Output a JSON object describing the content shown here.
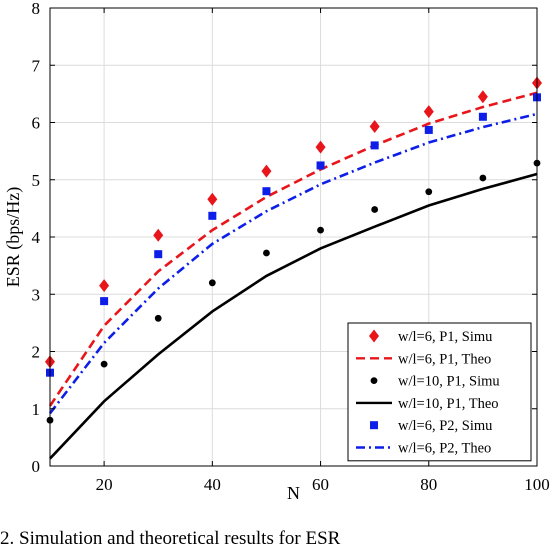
{
  "caption_text": "2. Simulation and theoretical results for ESR",
  "chart_data": {
    "type": "line",
    "xlabel": "N",
    "ylabel": "ESR (bps/Hz)",
    "xlim": [
      10,
      100
    ],
    "ylim": [
      0,
      8
    ],
    "xticks": [
      20,
      40,
      60,
      80,
      100
    ],
    "yticks": [
      0,
      1,
      2,
      3,
      4,
      5,
      6,
      7,
      8
    ],
    "grid": true,
    "legend_position": "bottom-right",
    "simu_x": [
      10,
      20,
      30,
      40,
      50,
      60,
      70,
      80,
      90,
      100
    ],
    "theo_x": [
      10,
      20,
      30,
      40,
      50,
      60,
      70,
      80,
      90,
      100
    ],
    "series": [
      {
        "name": "w/l=6, P1, Simu",
        "kind": "markers",
        "marker": "diamond",
        "color": "#e8151b",
        "values": [
          1.82,
          3.15,
          4.03,
          4.66,
          5.15,
          5.57,
          5.93,
          6.19,
          6.45,
          6.69
        ]
      },
      {
        "name": "w/l=6, P1, Theo",
        "kind": "line",
        "dash": "dashed",
        "color": "#e8151b",
        "values": [
          1.05,
          2.45,
          3.4,
          4.12,
          4.7,
          5.18,
          5.6,
          5.98,
          6.27,
          6.52
        ]
      },
      {
        "name": "w/l=10, P1, Simu",
        "kind": "markers",
        "marker": "circle",
        "color": "#000000",
        "values": [
          0.8,
          1.78,
          2.58,
          3.2,
          3.72,
          4.12,
          4.48,
          4.79,
          5.03,
          5.29
        ]
      },
      {
        "name": "w/l=10, P1, Theo",
        "kind": "line",
        "dash": "solid",
        "color": "#000000",
        "values": [
          0.13,
          1.13,
          1.95,
          2.7,
          3.32,
          3.8,
          4.18,
          4.55,
          4.84,
          5.1
        ]
      },
      {
        "name": "w/l=6, P2, Simu",
        "kind": "markers",
        "marker": "square",
        "color": "#0d1ee8",
        "values": [
          1.63,
          2.88,
          3.7,
          4.37,
          4.8,
          5.25,
          5.6,
          5.87,
          6.1,
          6.44
        ]
      },
      {
        "name": "w/l=6, P2, Theo",
        "kind": "line",
        "dash": "dashdot",
        "color": "#0d1ee8",
        "values": [
          0.92,
          2.15,
          3.1,
          3.88,
          4.45,
          4.92,
          5.3,
          5.65,
          5.92,
          6.15
        ]
      }
    ]
  }
}
